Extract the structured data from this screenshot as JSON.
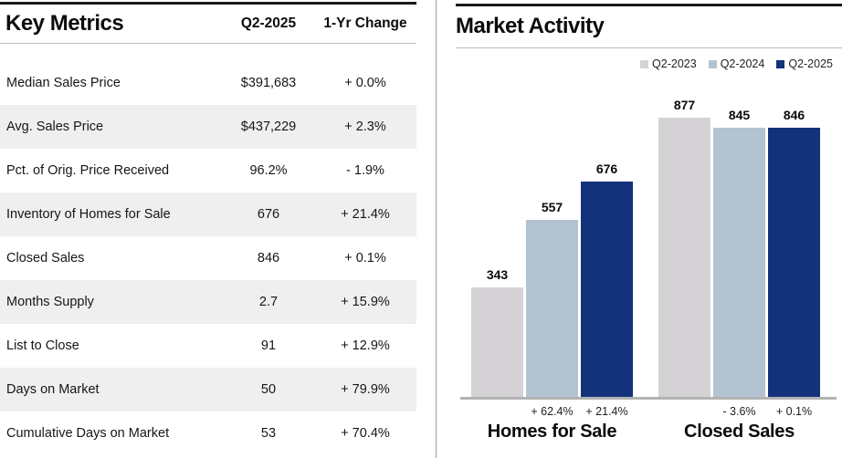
{
  "key_metrics": {
    "title": "Key Metrics",
    "col_value": "Q2-2025",
    "col_change": "1-Yr Change",
    "rows": [
      {
        "label": "Median Sales Price",
        "value": "$391,683",
        "change": "+ 0.0%"
      },
      {
        "label": "Avg. Sales Price",
        "value": "$437,229",
        "change": "+ 2.3%"
      },
      {
        "label": "Pct. of Orig. Price Received",
        "value": "96.2%",
        "change": "- 1.9%"
      },
      {
        "label": "Inventory of Homes for Sale",
        "value": "676",
        "change": "+ 21.4%"
      },
      {
        "label": "Closed Sales",
        "value": "846",
        "change": "+ 0.1%"
      },
      {
        "label": "Months Supply",
        "value": "2.7",
        "change": "+ 15.9%"
      },
      {
        "label": "List to Close",
        "value": "91",
        "change": "+ 12.9%"
      },
      {
        "label": "Days on Market",
        "value": "50",
        "change": "+ 79.9%"
      },
      {
        "label": "Cumulative Days on Market",
        "value": "53",
        "change": "+ 70.4%"
      }
    ]
  },
  "market_activity": {
    "title": "Market Activity"
  },
  "chart_data": {
    "type": "bar",
    "title": "Market Activity",
    "categories": [
      "Homes for Sale",
      "Closed Sales"
    ],
    "series": [
      {
        "name": "Q2-2023",
        "color": "#d5d2d6",
        "values": [
          343,
          877
        ],
        "changes": [
          "",
          ""
        ]
      },
      {
        "name": "Q2-2024",
        "color": "#b4c3d2",
        "values": [
          557,
          845
        ],
        "changes": [
          "+ 62.4%",
          "- 3.6%"
        ]
      },
      {
        "name": "Q2-2025",
        "color": "#13327b",
        "values": [
          676,
          846
        ],
        "changes": [
          "+ 21.4%",
          "+ 0.1%"
        ]
      }
    ],
    "ylim": [
      0,
      900
    ],
    "value_labels": true,
    "grid": false,
    "legend_position": "top-right"
  }
}
